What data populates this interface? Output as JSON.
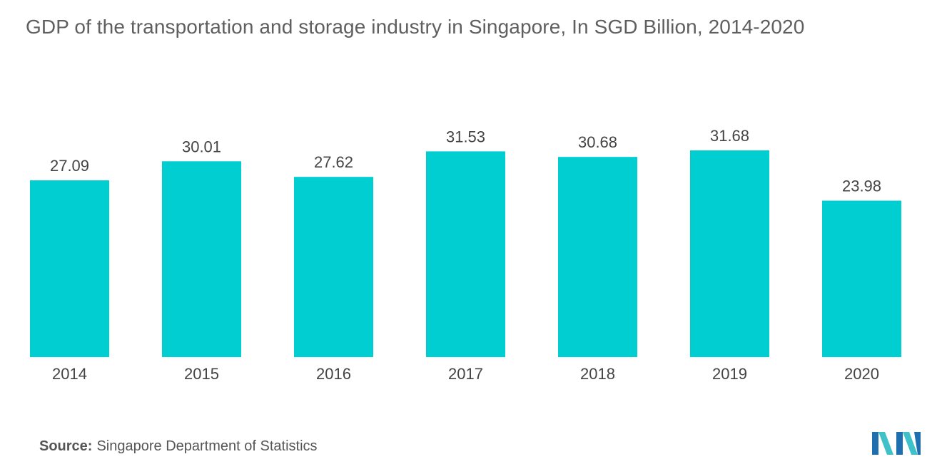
{
  "chart_data": {
    "type": "bar",
    "title": "GDP of the transportation and storage industry in Singapore, In SGD Billion, 2014-2020",
    "categories": [
      "2014",
      "2015",
      "2016",
      "2017",
      "2018",
      "2019",
      "2020"
    ],
    "values": [
      27.09,
      30.01,
      27.62,
      31.53,
      30.68,
      31.68,
      23.98
    ],
    "value_labels": [
      "27.09",
      "30.01",
      "27.62",
      "31.53",
      "30.68",
      "31.68",
      "23.98"
    ],
    "xlabel": "",
    "ylabel": "",
    "ylim": [
      0,
      31.68
    ],
    "grid": false,
    "legend": "none",
    "bar_color": "#00CED1"
  },
  "source": {
    "label": "Source:",
    "text": "Singapore Department of Statistics"
  },
  "logo": {
    "icon": "mordor-intelligence-logo-icon",
    "colors": [
      "#1E6FB0",
      "#3FC1C9"
    ]
  }
}
